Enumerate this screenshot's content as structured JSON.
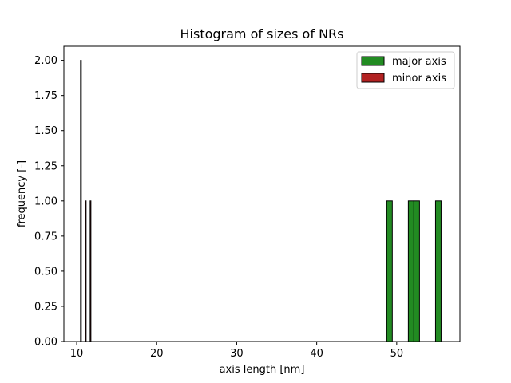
{
  "chart_data": {
    "type": "bar",
    "title": "Histogram of sizes of NRs",
    "xlabel": "axis length [nm]",
    "ylabel": "frequency [-]",
    "xlim": [
      8.4,
      57.9
    ],
    "ylim": [
      0,
      2.1
    ],
    "xticks": [
      10,
      20,
      30,
      40,
      50
    ],
    "yticks": [
      0.0,
      0.25,
      0.5,
      0.75,
      1.0,
      1.25,
      1.5,
      1.75,
      2.0
    ],
    "xtick_labels": [
      "10",
      "20",
      "30",
      "40",
      "50"
    ],
    "ytick_labels": [
      "0.00",
      "0.25",
      "0.50",
      "0.75",
      "1.00",
      "1.25",
      "1.50",
      "1.75",
      "2.00"
    ],
    "legend_position": "top-right",
    "series": [
      {
        "name": "major axis",
        "color": "#228b22",
        "bins": [
          {
            "x0": 48.75,
            "x1": 49.45,
            "count": 1
          },
          {
            "x0": 51.45,
            "x1": 52.15,
            "count": 1
          },
          {
            "x0": 52.15,
            "x1": 52.85,
            "count": 1
          },
          {
            "x0": 54.85,
            "x1": 55.55,
            "count": 1
          }
        ]
      },
      {
        "name": "minor axis",
        "color": "#b22222",
        "bins": [
          {
            "x0": 10.48,
            "x1": 10.58,
            "count": 2
          },
          {
            "x0": 11.08,
            "x1": 11.18,
            "count": 1
          },
          {
            "x0": 11.68,
            "x1": 11.78,
            "count": 1
          }
        ]
      }
    ]
  }
}
